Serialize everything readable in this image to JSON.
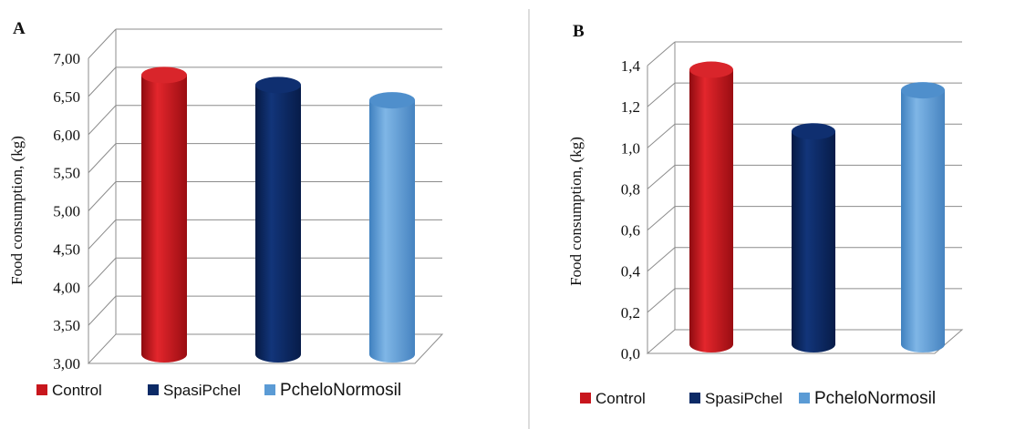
{
  "colors": {
    "Control": "#c8161d",
    "SpasiPchel": "#0c2a66",
    "PcheloNormosil": "#5b9bd5"
  },
  "chart_data": [
    {
      "type": "bar",
      "panel_label": "A",
      "ylabel": "Food consumption, (kg)",
      "ylim": [
        3.0,
        7.0
      ],
      "yticks": [
        "3,00",
        "3,50",
        "4,00",
        "4,50",
        "5,00",
        "5,50",
        "6,00",
        "6,50",
        "7,00"
      ],
      "categories": [
        "Control",
        "SpasiPchel",
        "PcheloNormosil"
      ],
      "values": [
        6.78,
        6.65,
        6.45
      ],
      "legend": [
        "Control",
        "SpasiPchel",
        "PcheloNormosil"
      ]
    },
    {
      "type": "bar",
      "panel_label": "B",
      "ylabel": "Food consumption, (kg)",
      "ylim": [
        0.0,
        1.4
      ],
      "yticks": [
        "0,0",
        "0,2",
        "0,4",
        "0,6",
        "0,8",
        "1,0",
        "1,2",
        "1,4"
      ],
      "categories": [
        "Control",
        "SpasiPchel",
        "PcheloNormosil"
      ],
      "values": [
        1.38,
        1.08,
        1.28
      ],
      "legend": [
        "Control",
        "SpasiPchel",
        "PcheloNormosil"
      ]
    }
  ]
}
